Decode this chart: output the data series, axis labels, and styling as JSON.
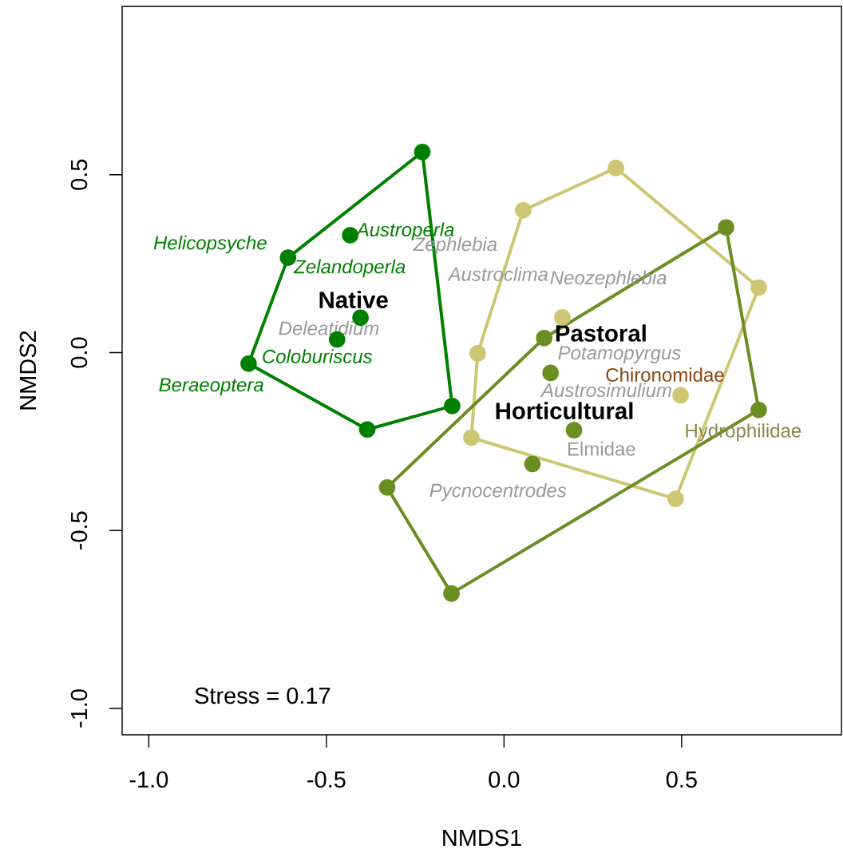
{
  "chart_data": {
    "type": "scatter",
    "xlabel": "NMDS1",
    "ylabel": "NMDS2",
    "xlim": [
      -1.075,
      0.95
    ],
    "ylim": [
      -1.074,
      0.973
    ],
    "xticks": [
      {
        "value": -1,
        "label": "-1.0"
      },
      -0.5,
      {
        "value": 0,
        "label": "0.0"
      },
      0.5
    ],
    "yticks": [
      {
        "value": -1,
        "label": "-1.0"
      },
      -0.5,
      {
        "value": 0,
        "label": "0.0"
      },
      0.5
    ],
    "marker": "circle",
    "series": [
      {
        "color": "#008000",
        "x": [
          -0.23,
          -0.433,
          -0.608,
          -0.404,
          -0.47,
          -0.719,
          -0.385,
          -0.146
        ],
        "values": [
          0.564,
          0.33,
          0.267,
          0.098,
          0.037,
          -0.031,
          -0.216,
          -0.15
        ]
      },
      {
        "type": "line",
        "marker": "none",
        "color": "#008000",
        "x": [
          -0.23,
          -0.146,
          -0.385,
          -0.719
        ],
        "values": [
          0.564,
          -0.15,
          -0.216,
          -0.031
        ]
      },
      {
        "type": "line",
        "marker": "none",
        "color": "#008000",
        "x": [
          -0.719,
          -0.608,
          -0.23
        ],
        "values": [
          -0.031,
          0.267,
          0.564
        ]
      },
      {
        "color": "#cdc673",
        "x": [
          0.315,
          0.054,
          0.717,
          0.164,
          -0.074,
          0.497,
          -0.092,
          0.483
        ],
        "values": [
          0.519,
          0.4,
          0.183,
          0.099,
          -0.002,
          -0.12,
          -0.239,
          -0.411
        ]
      },
      {
        "type": "line",
        "marker": "none",
        "color": "#cdc673",
        "x": [
          0.315,
          0.717,
          0.483,
          -0.092
        ],
        "values": [
          0.519,
          0.183,
          -0.411,
          -0.239
        ]
      },
      {
        "type": "line",
        "marker": "none",
        "color": "#cdc673",
        "x": [
          -0.092,
          -0.074,
          0.054,
          0.315
        ],
        "values": [
          -0.239,
          -0.002,
          0.4,
          0.519
        ]
      },
      {
        "color": "#6b8e23",
        "x": [
          0.625,
          0.113,
          0.131,
          0.717,
          0.197,
          0.08,
          -0.329,
          -0.148
        ],
        "values": [
          0.352,
          0.041,
          -0.057,
          -0.161,
          -0.218,
          -0.313,
          -0.379,
          -0.677
        ]
      },
      {
        "type": "line",
        "marker": "none",
        "color": "#6b8e23",
        "x": [
          0.625,
          0.717,
          -0.148
        ],
        "values": [
          0.352,
          -0.161,
          -0.677
        ]
      },
      {
        "type": "line",
        "marker": "none",
        "color": "#6b8e23",
        "x": [
          -0.148,
          -0.329,
          0.113,
          0.625
        ],
        "values": [
          -0.677,
          -0.379,
          0.041,
          0.352
        ]
      }
    ],
    "annotations": [
      "Helicopsyche",
      "Austroperla",
      "Zelandoperla",
      "Coloburiscus",
      "Beraeoptera",
      "Deleatidium",
      "Zephlebia",
      "Austroclima",
      "Neozephlebia",
      "Potamopyrgus",
      "Chironomidae",
      "Austrosimulium",
      "Hydrophilidae",
      "Elmidae",
      "Pycnocentrodes",
      "Native",
      "Pastoral",
      "Horticultural",
      "Stress = 0.17"
    ]
  }
}
